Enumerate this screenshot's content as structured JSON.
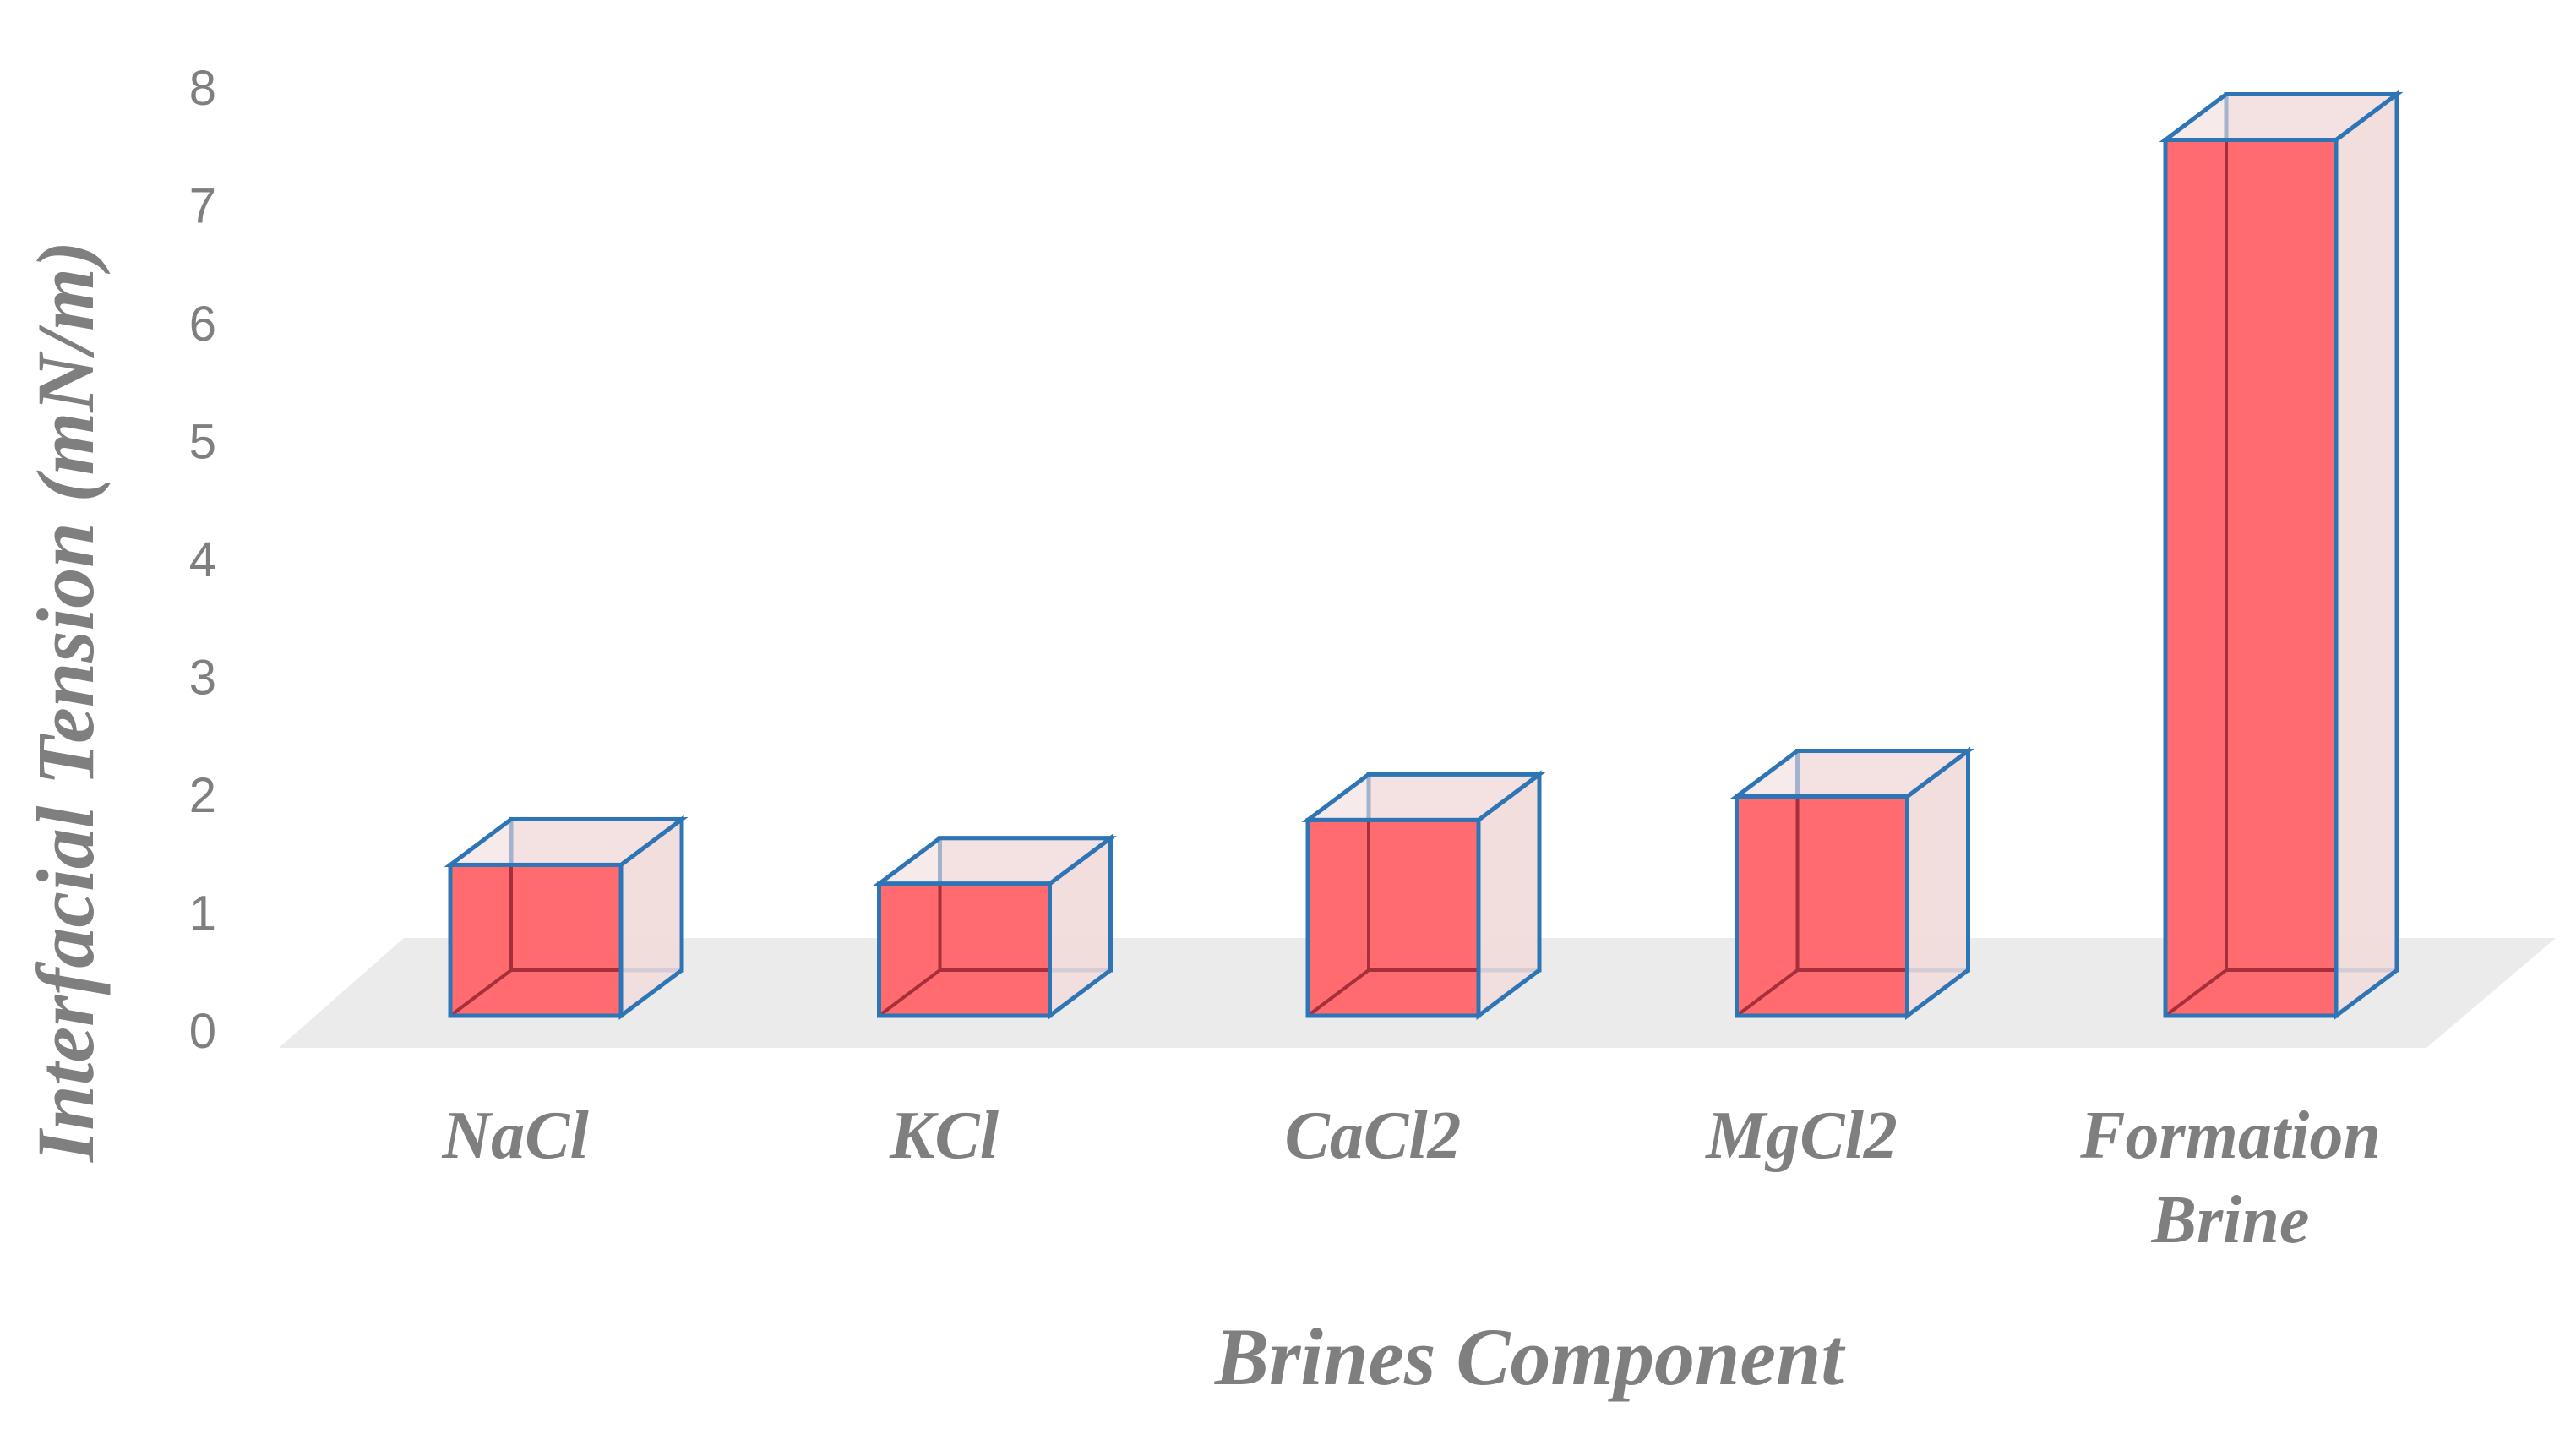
{
  "chart_data": {
    "type": "bar",
    "style": "3d",
    "title": "",
    "xlabel": "Brines Component",
    "ylabel": "Interfacial Tension (mN/m)",
    "categories": [
      "NaCl",
      "KCl",
      "CaCl2",
      "MgCl2",
      "Formation Brine"
    ],
    "category_lines": [
      [
        "NaCl"
      ],
      [
        "KCl"
      ],
      [
        "CaCl2"
      ],
      [
        "MgCl2"
      ],
      [
        "Formation",
        "Brine"
      ]
    ],
    "values": [
      1.28,
      1.12,
      1.66,
      1.86,
      7.43
    ],
    "ylim": [
      0,
      8
    ],
    "yticks": [
      "0",
      "1",
      "2",
      "3",
      "4",
      "5",
      "6",
      "7",
      "8"
    ],
    "grid": false,
    "legend": "none",
    "colors": {
      "bar_front": "#ff6b6e",
      "bar_side": "#f2dcdc",
      "bar_edge": "#2e75b6",
      "floor": "#ebebeb",
      "text": "#7f7f7f"
    }
  }
}
